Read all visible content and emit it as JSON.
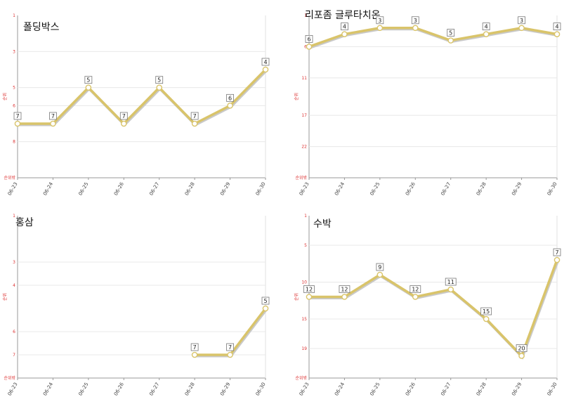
{
  "colors": {
    "line": "#d9c46a",
    "line_shadow": "#c9c9c9",
    "point_fill": "#ffffff",
    "tick_red": "#dd3333",
    "grid": "#e8e8e8"
  },
  "chart_data": [
    {
      "type": "line",
      "title": "폴딩박스",
      "ylabel": "순위",
      "bottom_label": "순위밖",
      "y_inverted": true,
      "yticks": [
        1,
        3,
        5,
        6,
        8
      ],
      "categories": [
        "06-23",
        "06-24",
        "06-25",
        "06-26",
        "06-27",
        "06-28",
        "06-29",
        "06-30"
      ],
      "values": [
        7,
        7,
        5,
        7,
        5,
        7,
        6,
        4
      ]
    },
    {
      "type": "line",
      "title": "리포좀 글루타치온",
      "ylabel": "순위",
      "bottom_label": "순위밖",
      "y_inverted": true,
      "yticks": [
        1,
        6,
        11,
        17,
        22
      ],
      "categories": [
        "06-23",
        "06-24",
        "06-25",
        "06-26",
        "06-27",
        "06-28",
        "06-29",
        "06-30"
      ],
      "values": [
        6,
        4,
        3,
        3,
        5,
        4,
        3,
        4
      ]
    },
    {
      "type": "line",
      "title": "홍삼",
      "ylabel": "순위",
      "bottom_label": "순위밖",
      "y_inverted": true,
      "yticks": [
        1,
        3,
        4,
        6,
        7
      ],
      "categories": [
        "06-23",
        "06-24",
        "06-25",
        "06-26",
        "06-27",
        "06-28",
        "06-29",
        "06-30"
      ],
      "values": [
        null,
        null,
        null,
        null,
        null,
        7,
        7,
        5
      ]
    },
    {
      "type": "line",
      "title": "수박",
      "ylabel": "순위",
      "bottom_label": "순위밖",
      "y_inverted": true,
      "yticks": [
        1,
        5,
        10,
        15,
        19
      ],
      "categories": [
        "06-23",
        "06-24",
        "06-25",
        "06-26",
        "06-27",
        "06-28",
        "06-29",
        "06-30"
      ],
      "values": [
        12,
        12,
        9,
        12,
        11,
        15,
        20,
        7
      ]
    }
  ]
}
